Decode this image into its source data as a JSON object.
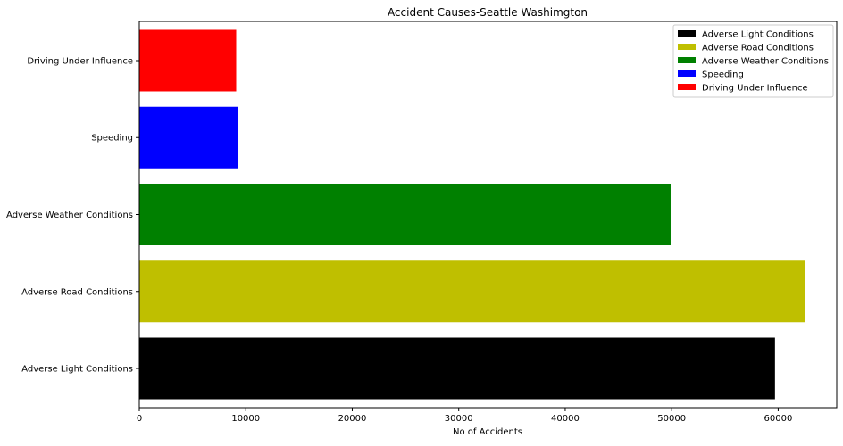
{
  "chart_data": {
    "type": "bar",
    "orientation": "horizontal",
    "title": "Accident Causes-Seattle Washimgton",
    "xlabel": "No of Accidents",
    "ylabel": "",
    "xlim": [
      0,
      65500
    ],
    "xticks": [
      0,
      10000,
      20000,
      30000,
      40000,
      50000,
      60000
    ],
    "xtick_labels": [
      "0",
      "10000",
      "20000",
      "30000",
      "40000",
      "50000",
      "60000"
    ],
    "grid": false,
    "legend_position": "top-right",
    "categories": [
      "Adverse Light Conditions",
      "Adverse Road Conditions",
      "Adverse Weather Conditions",
      "Speeding",
      "Driving Under Influence"
    ],
    "values": [
      59700,
      62500,
      49900,
      9300,
      9100
    ],
    "colors": [
      "#000000",
      "#bfbf00",
      "#008000",
      "#0000ff",
      "#ff0000"
    ],
    "legend": [
      "Adverse Light Conditions",
      "Adverse Road Conditions",
      "Adverse Weather Conditions",
      "Speeding",
      "Driving Under Influence"
    ]
  }
}
